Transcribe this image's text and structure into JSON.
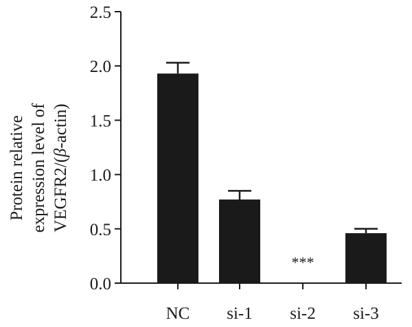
{
  "chart_data": {
    "type": "bar",
    "categories": [
      "NC",
      "si-1",
      "si-2",
      "si-3"
    ],
    "values": [
      1.93,
      0.77,
      0.0,
      0.46
    ],
    "error_bars": [
      0.1,
      0.08,
      0.0,
      0.04
    ],
    "ylabel_lines": [
      "Protein relative",
      "expression level of",
      "VEGFR2/(β-actin)"
    ],
    "ylim": [
      0,
      2.5
    ],
    "yticks": [
      "0.0",
      "0.5",
      "1.0",
      "1.5",
      "2.0",
      "2.5"
    ],
    "annotations": [
      {
        "category": "si-2",
        "text": "***"
      }
    ],
    "bar_color": "#1a1a1a",
    "grid": false
  }
}
